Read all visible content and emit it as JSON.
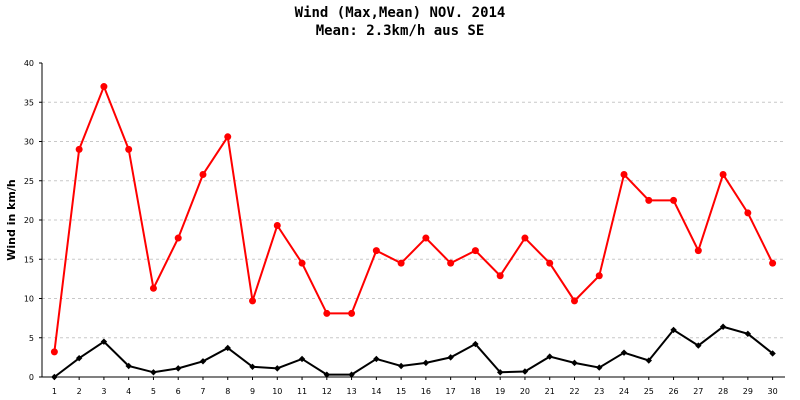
{
  "chart_data": {
    "type": "line",
    "title": "Wind (Max,Mean) NOV. 2014",
    "subtitle": "Mean: 2.3km/h aus SE",
    "xlabel": "",
    "ylabel": "Wind in km/h",
    "ylim": [
      0,
      40
    ],
    "yticks": [
      0,
      5,
      10,
      15,
      20,
      25,
      30,
      35,
      40
    ],
    "x": [
      1,
      2,
      3,
      4,
      5,
      6,
      7,
      8,
      9,
      10,
      11,
      12,
      13,
      14,
      15,
      16,
      17,
      18,
      19,
      20,
      21,
      22,
      23,
      24,
      25,
      26,
      27,
      28,
      29,
      30
    ],
    "grid": true,
    "legend": "none",
    "series": [
      {
        "color": "#ff0000",
        "values": [
          3.2,
          29.0,
          37.0,
          29.0,
          11.3,
          17.7,
          25.8,
          30.6,
          9.7,
          19.3,
          14.5,
          8.1,
          8.1,
          16.1,
          14.5,
          17.7,
          14.5,
          16.1,
          12.9,
          17.7,
          14.5,
          9.7,
          12.9,
          25.8,
          22.5,
          22.5,
          16.1,
          25.8,
          20.9,
          14.5
        ]
      },
      {
        "color": "#000000",
        "values": [
          0.0,
          2.4,
          4.5,
          1.4,
          0.6,
          1.1,
          2.0,
          3.7,
          1.3,
          1.1,
          2.3,
          0.3,
          0.3,
          2.3,
          1.4,
          1.8,
          2.5,
          4.2,
          0.6,
          0.7,
          2.6,
          1.8,
          1.2,
          3.1,
          2.1,
          6.0,
          4.0,
          6.4,
          5.5,
          3.0
        ]
      }
    ]
  }
}
